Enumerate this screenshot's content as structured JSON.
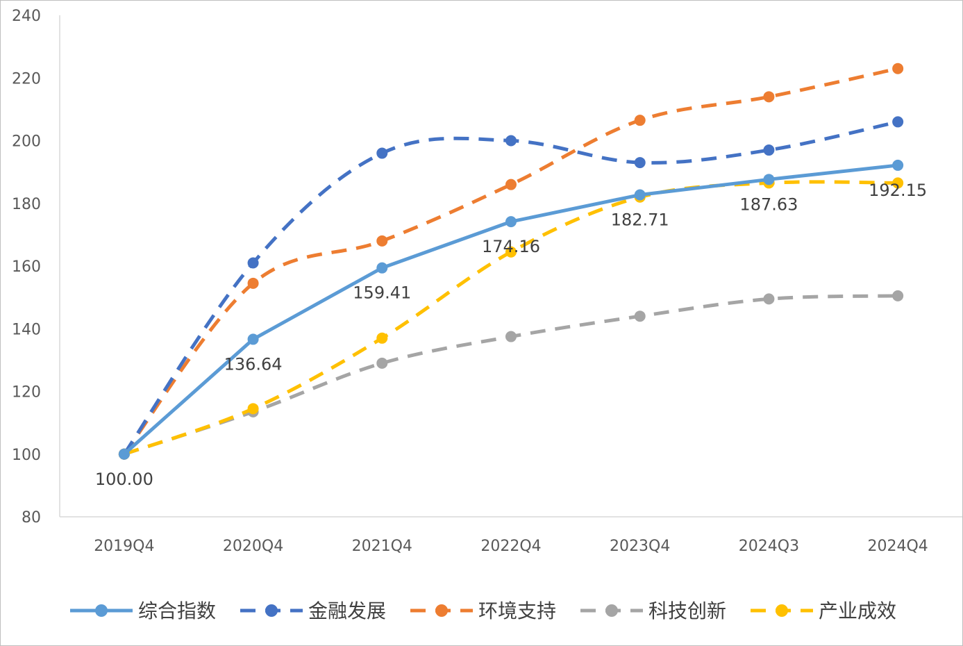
{
  "chart_data": {
    "type": "line",
    "categories": [
      "2019Q4",
      "2020Q4",
      "2021Q4",
      "2022Q4",
      "2023Q4",
      "2024Q3",
      "2024Q4"
    ],
    "ylim": [
      80,
      240
    ],
    "yticks": [
      80,
      100,
      120,
      140,
      160,
      180,
      200,
      220,
      240
    ],
    "grid": false,
    "legend_position": "bottom",
    "series": [
      {
        "name": "综合指数",
        "values": [
          100.0,
          136.64,
          159.41,
          174.16,
          182.71,
          187.63,
          192.15
        ],
        "color": "#5b9bd5",
        "dashed": false,
        "smooth": false,
        "data_labels": [
          "100.00",
          "136.64",
          "159.41",
          "174.16",
          "182.71",
          "187.63",
          "192.15"
        ]
      },
      {
        "name": "金融发展",
        "values": [
          100.0,
          161.0,
          196.0,
          200.0,
          193.0,
          197.0,
          206.0
        ],
        "color": "#4472c4",
        "dashed": true,
        "smooth": true
      },
      {
        "name": "环境支持",
        "values": [
          100.0,
          154.5,
          168.0,
          186.0,
          206.5,
          214.0,
          223.0
        ],
        "color": "#ed7d31",
        "dashed": true,
        "smooth": true
      },
      {
        "name": "科技创新",
        "values": [
          100.0,
          113.5,
          129.0,
          137.5,
          144.0,
          149.5,
          150.5
        ],
        "color": "#a5a5a5",
        "dashed": true,
        "smooth": true
      },
      {
        "name": "产业成效",
        "values": [
          100.0,
          114.5,
          137.0,
          164.5,
          182.0,
          186.5,
          186.5
        ],
        "color": "#ffc000",
        "dashed": true,
        "smooth": true
      }
    ]
  }
}
